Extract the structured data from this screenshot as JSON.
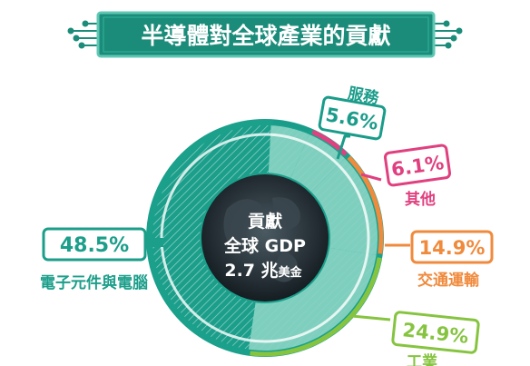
{
  "banner": {
    "title": "半導體對全球產業的貢獻",
    "bg_color": "#1b8c7a",
    "border_color": "#5ec7b3"
  },
  "center": {
    "line1": "貢獻",
    "line2": "全球 GDP",
    "line3_value": "2.7 兆",
    "line3_unit": "美金"
  },
  "chart_data": {
    "type": "pie",
    "title": "半導體對全球產業的貢獻",
    "center_label": "貢獻 全球 GDP 2.7 兆美金",
    "slices": [
      {
        "name": "電子元件與電腦",
        "value": 48.5,
        "label": "48.5%",
        "color": "#1b9e8a"
      },
      {
        "name": "服務",
        "value": 5.6,
        "label": "5.6%",
        "color": "#1a9c8a"
      },
      {
        "name": "其他",
        "value": 6.1,
        "label": "6.1%",
        "color": "#e0407f"
      },
      {
        "name": "交通運輸",
        "value": 14.9,
        "label": "14.9%",
        "color": "#f08a3c"
      },
      {
        "name": "工業",
        "value": 24.9,
        "label": "24.9%",
        "color": "#86c440"
      }
    ]
  },
  "colors": {
    "teal_dark": "#1b8c7a",
    "teal_light": "#5ec7b3",
    "globe": "#1f2a30",
    "ring_outer": "#1aa08b"
  },
  "partial_footer_text": "工業"
}
